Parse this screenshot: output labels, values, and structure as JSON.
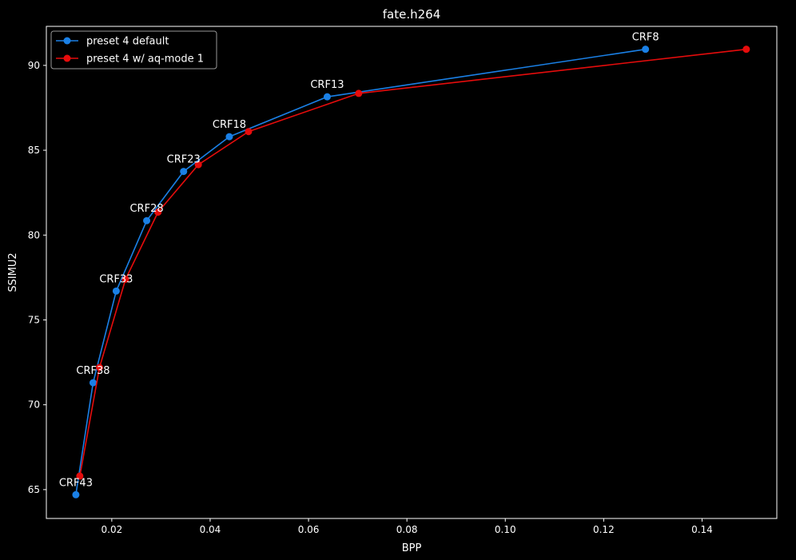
{
  "chart_data": {
    "type": "line",
    "title": "fate.h264",
    "xlabel": "BPP",
    "ylabel": "SSIMU2",
    "xlim": [
      0.0067,
      0.1552
    ],
    "ylim": [
      63.3,
      92.3
    ],
    "xticks": [
      "0.02",
      "0.04",
      "0.06",
      "0.08",
      "0.10",
      "0.12",
      "0.14"
    ],
    "yticks": [
      "65",
      "70",
      "75",
      "80",
      "85",
      "90"
    ],
    "legend": "top-left",
    "grid": false,
    "series": [
      {
        "name": "preset 4 default",
        "color": "#1a80e6",
        "x": [
          0.0127,
          0.0162,
          0.0209,
          0.0271,
          0.0346,
          0.0439,
          0.0638,
          0.1285
        ],
        "y": [
          64.7,
          71.3,
          76.7,
          80.85,
          83.75,
          85.8,
          88.15,
          90.95
        ]
      },
      {
        "name": "preset 4 w/ aq-mode 1",
        "color": "#e60c0c",
        "x": [
          0.0135,
          0.0175,
          0.0228,
          0.0294,
          0.0376,
          0.0478,
          0.0702,
          0.149
        ],
        "y": [
          65.8,
          72.2,
          77.4,
          81.35,
          84.15,
          86.1,
          88.35,
          90.95
        ]
      }
    ],
    "annotations": [
      {
        "text": "CRF43",
        "x": 0.0127,
        "y": 64.7
      },
      {
        "text": "CRF38",
        "x": 0.0162,
        "y": 71.3
      },
      {
        "text": "CRF33",
        "x": 0.0209,
        "y": 76.7
      },
      {
        "text": "CRF28",
        "x": 0.0271,
        "y": 80.85
      },
      {
        "text": "CRF23",
        "x": 0.0346,
        "y": 83.75
      },
      {
        "text": "CRF18",
        "x": 0.0439,
        "y": 85.8
      },
      {
        "text": "CRF13",
        "x": 0.0638,
        "y": 88.15
      },
      {
        "text": "CRF8",
        "x": 0.1285,
        "y": 90.95
      }
    ]
  }
}
